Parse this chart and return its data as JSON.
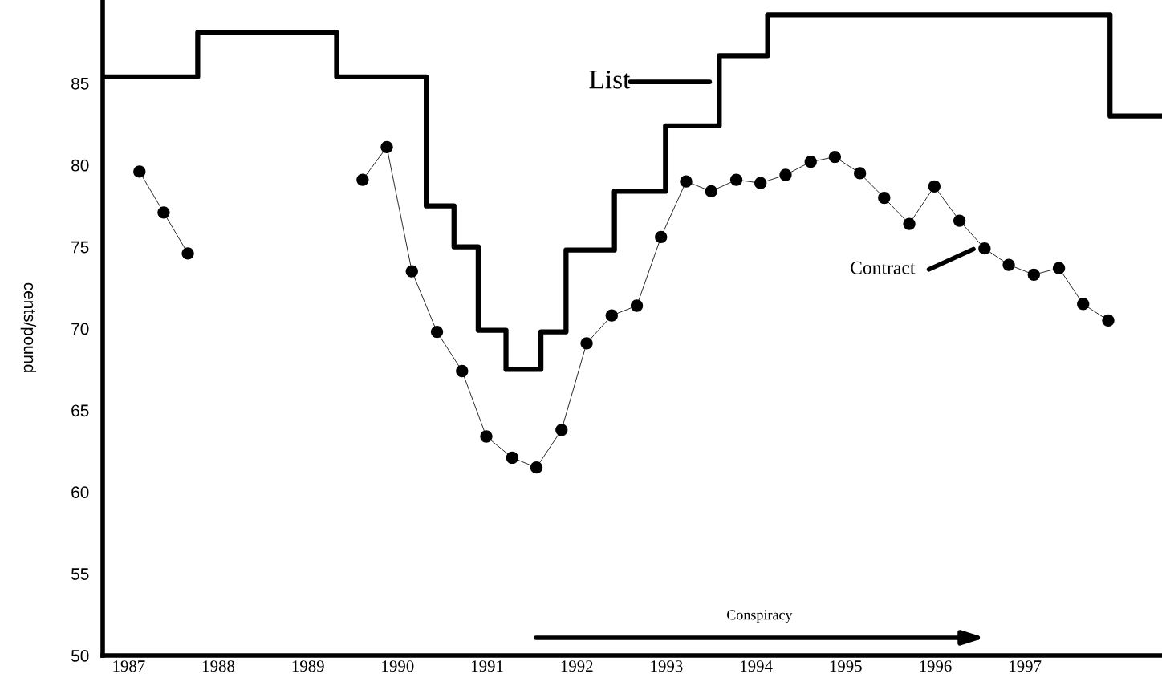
{
  "chart_data": {
    "type": "line",
    "ylabel": "cents/pound",
    "xlim": [
      1986.71,
      1998.53
    ],
    "ylim": [
      50,
      90.1
    ],
    "xticks": [
      1987,
      1988,
      1989,
      1990,
      1991,
      1992,
      1993,
      1994,
      1995,
      1996,
      1997
    ],
    "yticks": [
      50,
      55,
      60,
      65,
      70,
      75,
      80,
      85
    ],
    "series": [
      {
        "type": "step",
        "color": "#000000",
        "marker": "none",
        "x": [
          1986.71,
          1987.77,
          1989.32,
          1990.32,
          1990.63,
          1990.9,
          1991.21,
          1991.6,
          1991.88,
          1992.42,
          1992.99,
          1993.59,
          1994.13,
          1997.95,
          1998.53
        ],
        "values": [
          85.4,
          88.1,
          85.4,
          77.5,
          75.0,
          69.9,
          67.5,
          69.8,
          74.8,
          78.4,
          82.4,
          86.7,
          89.2,
          83.0,
          83.0
        ]
      },
      {
        "color": "#000000",
        "marker": "circle",
        "x": [
          1987.12,
          1987.39,
          1987.66,
          1988.6,
          1989.61,
          1989.88,
          1990.16,
          1990.44,
          1990.72,
          1990.99,
          1991.28,
          1991.55,
          1991.83,
          1992.11,
          1992.39,
          1992.67,
          1992.94,
          1993.22,
          1993.5,
          1993.78,
          1994.05,
          1994.33,
          1994.61,
          1994.88,
          1995.16,
          1995.43,
          1995.71,
          1995.99,
          1996.27,
          1996.55,
          1996.82,
          1997.1,
          1997.38,
          1997.65,
          1997.93
        ],
        "values": [
          79.6,
          77.1,
          74.6,
          null,
          79.1,
          81.1,
          73.5,
          69.8,
          67.4,
          63.4,
          62.1,
          61.5,
          63.8,
          69.1,
          70.8,
          71.4,
          75.6,
          79.0,
          78.4,
          79.1,
          78.9,
          79.4,
          80.2,
          80.5,
          79.5,
          78.0,
          76.4,
          78.7,
          76.6,
          74.9,
          73.9,
          73.3,
          73.7,
          71.5,
          70.5
        ]
      }
    ],
    "annotations": [
      "List",
      "Contract",
      "Conspiracy"
    ],
    "grid": false,
    "legend": false
  }
}
